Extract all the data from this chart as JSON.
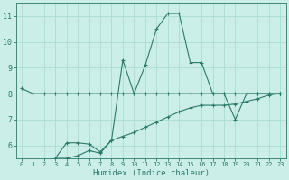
{
  "line1_x": [
    0,
    1,
    2,
    3,
    4,
    5,
    6,
    7,
    8,
    9,
    10,
    11,
    12,
    13,
    14,
    15,
    16,
    17,
    18,
    19,
    20,
    21,
    22,
    23
  ],
  "line1_y": [
    8.2,
    8.0,
    8.0,
    8.0,
    8.0,
    8.0,
    8.0,
    8.0,
    8.0,
    8.0,
    8.0,
    8.0,
    8.0,
    8.0,
    8.0,
    8.0,
    8.0,
    8.0,
    8.0,
    8.0,
    8.0,
    8.0,
    8.0,
    8.0
  ],
  "line2_x": [
    3,
    4,
    5,
    6,
    7,
    8,
    9,
    10,
    11,
    12,
    13,
    14,
    15,
    16,
    17,
    18,
    19,
    20,
    21,
    22,
    23
  ],
  "line2_y": [
    5.5,
    6.1,
    6.1,
    6.05,
    5.75,
    6.2,
    9.3,
    8.0,
    9.1,
    10.5,
    11.1,
    11.1,
    9.2,
    9.2,
    8.0,
    8.0,
    7.0,
    8.0,
    8.0,
    8.0,
    8.0
  ],
  "line3_x": [
    3,
    4,
    5,
    6,
    7,
    8,
    9,
    10,
    11,
    12,
    13,
    14,
    15,
    16,
    17,
    18,
    19,
    20,
    21,
    22,
    23
  ],
  "line3_y": [
    5.5,
    5.5,
    5.6,
    5.8,
    5.7,
    6.2,
    6.35,
    6.5,
    6.7,
    6.9,
    7.1,
    7.3,
    7.45,
    7.55,
    7.55,
    7.55,
    7.6,
    7.7,
    7.8,
    7.95,
    8.0
  ],
  "color": "#2a7a6a",
  "bg_color": "#cceee8",
  "grid_color": "#aaddcc",
  "xlabel": "Humidex (Indice chaleur)",
  "xlim": [
    -0.5,
    23.5
  ],
  "ylim": [
    5.5,
    11.5
  ],
  "yticks": [
    6,
    7,
    8,
    9,
    10,
    11
  ],
  "xticks": [
    0,
    1,
    2,
    3,
    4,
    5,
    6,
    7,
    8,
    9,
    10,
    11,
    12,
    13,
    14,
    15,
    16,
    17,
    18,
    19,
    20,
    21,
    22,
    23
  ]
}
